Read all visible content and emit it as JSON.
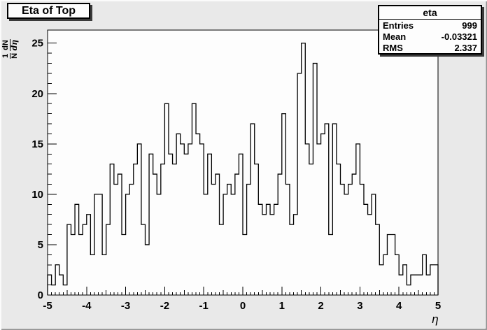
{
  "title": "Eta of Top",
  "stats": {
    "title": "eta",
    "rows": [
      {
        "label": "Entries",
        "value": "999"
      },
      {
        "label": "Mean",
        "value": "-0.03321"
      },
      {
        "label": "RMS",
        "value": "2.337"
      }
    ]
  },
  "axes": {
    "x": {
      "title": "η",
      "tick_labels": [
        "-5",
        "-4",
        "-3",
        "-2",
        "-1",
        "0",
        "1",
        "2",
        "3",
        "4",
        "5"
      ],
      "tick_values": [
        -5,
        -4,
        -3,
        -2,
        -1,
        0,
        1,
        2,
        3,
        4,
        5
      ]
    },
    "y": {
      "title": "1/N dN/dη",
      "title_fractions": [
        {
          "num": "1",
          "den": "N"
        },
        {
          "num": "dN",
          "den": "dη"
        }
      ],
      "tick_labels": [
        "0",
        "5",
        "10",
        "15",
        "20",
        "25"
      ],
      "tick_values": [
        0,
        5,
        10,
        15,
        20,
        25
      ]
    }
  },
  "chart_data": {
    "type": "bar",
    "histogram": true,
    "title": "Eta of Top",
    "xlabel": "η",
    "ylabel": "1/N dN/dη",
    "x_start": -5.0,
    "bin_width": 0.1,
    "n_bins": 100,
    "xlim": [
      -5,
      5
    ],
    "ylim": [
      0,
      26.3
    ],
    "grid": false,
    "legend": "none",
    "values": [
      2,
      1,
      3,
      2,
      1,
      7,
      6,
      9,
      6,
      7,
      8,
      4,
      10,
      10,
      4,
      7,
      13,
      11,
      12,
      6,
      10,
      11,
      13,
      15,
      7,
      5,
      14,
      12,
      10,
      13,
      19,
      14,
      13,
      16,
      15,
      14,
      15,
      19,
      16,
      15,
      10,
      14,
      11,
      12,
      7,
      10,
      11,
      10,
      12,
      14,
      6,
      11,
      17,
      13,
      9,
      8,
      9,
      8,
      9,
      12,
      18,
      11,
      7,
      8,
      22,
      25,
      15,
      13,
      23,
      15,
      16,
      17,
      6,
      17,
      13,
      11,
      10,
      11,
      12,
      15,
      11,
      9,
      8,
      10,
      7,
      3,
      4,
      6,
      6,
      4,
      2,
      3,
      1,
      2,
      2,
      2,
      4,
      2,
      3,
      3
    ]
  },
  "colors": {
    "canvas_bg": "#e9e9e9",
    "frame_bg": "#fdfdfd",
    "line": "#000000",
    "text": "#000000"
  }
}
